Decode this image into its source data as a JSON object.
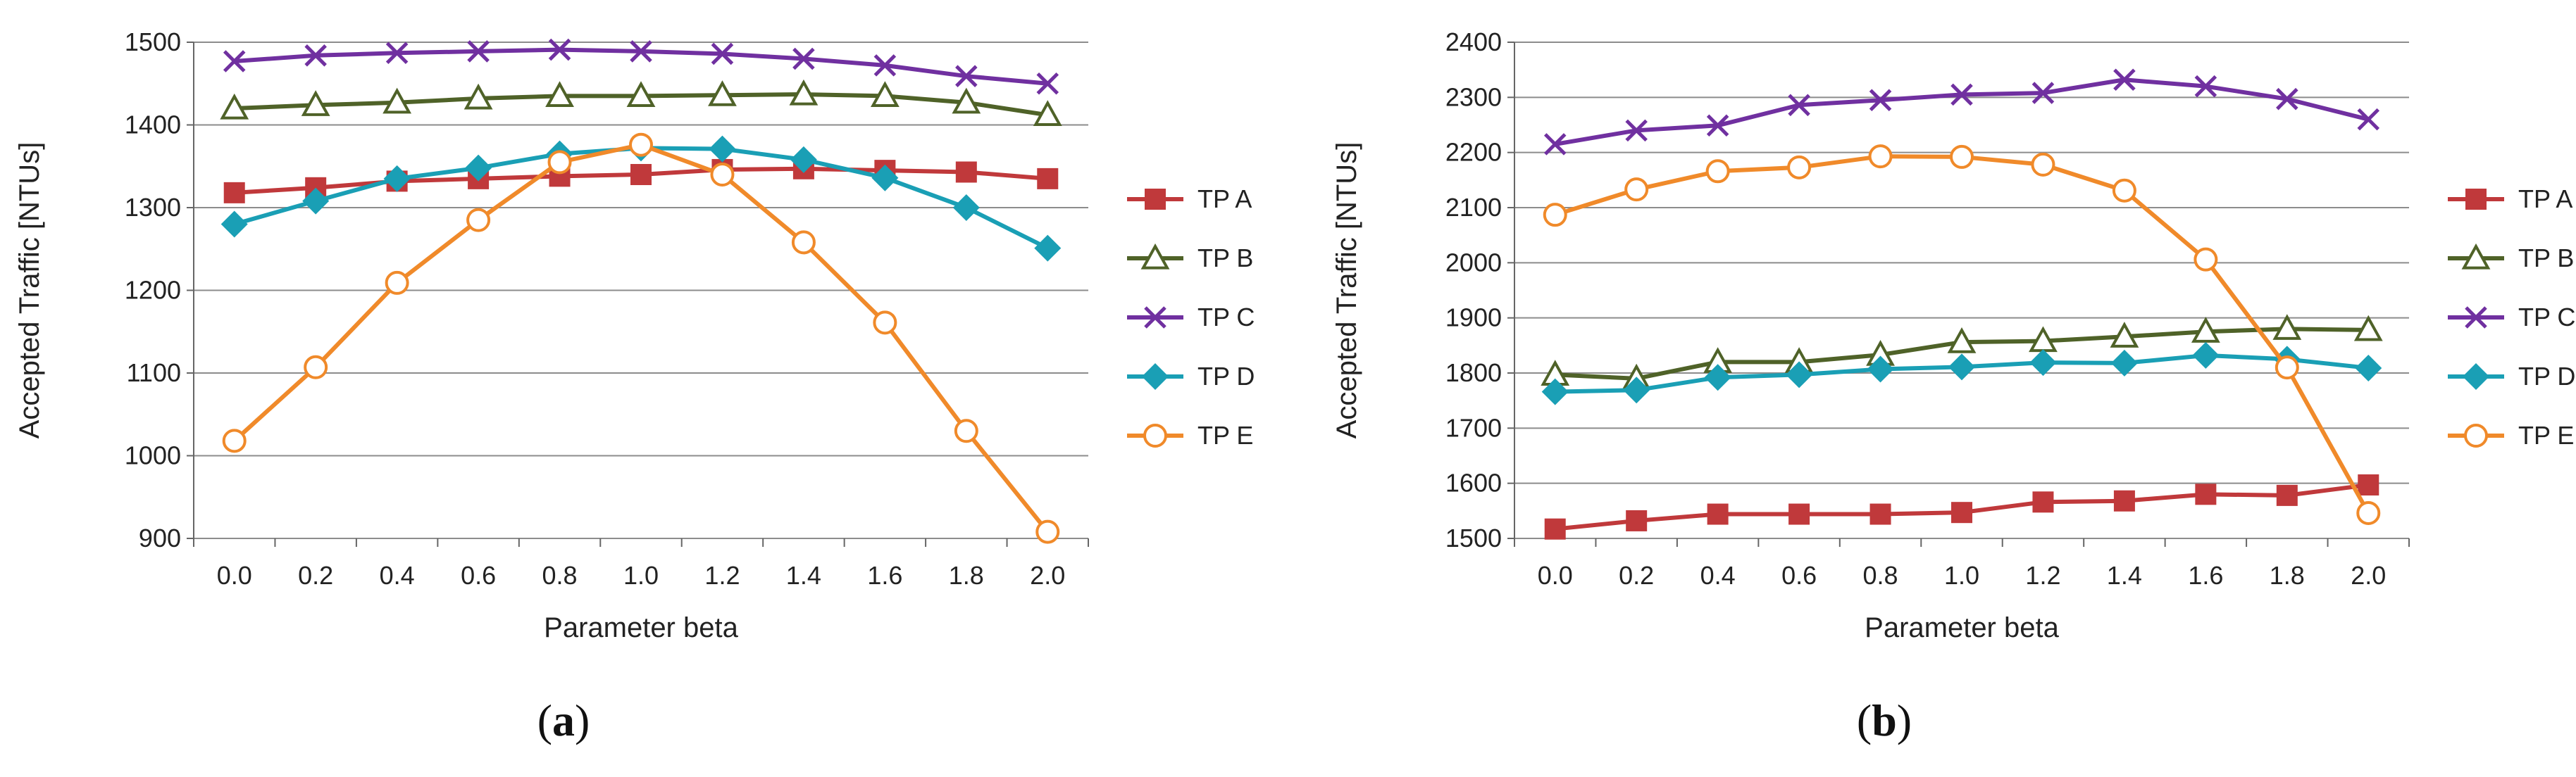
{
  "colors": {
    "TP A": "#c0393b",
    "TP B": "#4f6228",
    "TP C": "#7030a0",
    "TP D": "#1a9fb5",
    "TP E": "#f08a2a",
    "grid": "#8c8c8c",
    "axis": "#666666"
  },
  "chart_data": [
    {
      "type": "line",
      "panel": "a",
      "caption_open": "(",
      "caption_letter": "a",
      "caption_close": ")",
      "xlabel": "Parameter beta",
      "ylabel": "Accepted Traffic [NTUs]",
      "categories": [
        "0.0",
        "0.2",
        "0.4",
        "0.6",
        "0.8",
        "1.0",
        "1.2",
        "1.4",
        "1.6",
        "1.8",
        "2.0"
      ],
      "ylim": [
        900,
        1500
      ],
      "yticks": [
        900,
        1000,
        1100,
        1200,
        1300,
        1400,
        1500
      ],
      "grid": true,
      "legend_position": "right",
      "series": [
        {
          "name": "TP A",
          "marker": "square",
          "values": [
            1318,
            1324,
            1332,
            1335,
            1338,
            1340,
            1346,
            1347,
            1345,
            1343,
            1335
          ]
        },
        {
          "name": "TP B",
          "marker": "triangle-open",
          "values": [
            1420,
            1424,
            1427,
            1432,
            1435,
            1435,
            1436,
            1437,
            1435,
            1427,
            1412
          ]
        },
        {
          "name": "TP C",
          "marker": "x",
          "values": [
            1477,
            1484,
            1487,
            1489,
            1491,
            1489,
            1486,
            1480,
            1472,
            1459,
            1450
          ]
        },
        {
          "name": "TP D",
          "marker": "diamond",
          "values": [
            1280,
            1308,
            1335,
            1348,
            1365,
            1372,
            1371,
            1358,
            1336,
            1300,
            1251
          ]
        },
        {
          "name": "TP E",
          "marker": "circle-open",
          "values": [
            1018,
            1107,
            1209,
            1285,
            1355,
            1376,
            1340,
            1258,
            1161,
            1030,
            908
          ]
        }
      ]
    },
    {
      "type": "line",
      "panel": "b",
      "caption_open": "(",
      "caption_letter": "b",
      "caption_close": ")",
      "xlabel": "Parameter beta",
      "ylabel": "Accepted Traffic [NTUs]",
      "categories": [
        "0.0",
        "0.2",
        "0.4",
        "0.6",
        "0.8",
        "1.0",
        "1.2",
        "1.4",
        "1.6",
        "1.8",
        "2.0"
      ],
      "ylim": [
        1500,
        2400
      ],
      "yticks": [
        1500,
        1600,
        1700,
        1800,
        1900,
        2000,
        2100,
        2200,
        2300,
        2400
      ],
      "grid": true,
      "legend_position": "right",
      "series": [
        {
          "name": "TP A",
          "marker": "square",
          "values": [
            1517,
            1532,
            1544,
            1544,
            1544,
            1547,
            1566,
            1568,
            1580,
            1578,
            1597
          ]
        },
        {
          "name": "TP B",
          "marker": "triangle-open",
          "values": [
            1797,
            1790,
            1820,
            1820,
            1833,
            1856,
            1858,
            1866,
            1875,
            1880,
            1878
          ]
        },
        {
          "name": "TP C",
          "marker": "x",
          "values": [
            2215,
            2240,
            2249,
            2286,
            2295,
            2305,
            2308,
            2332,
            2320,
            2297,
            2260
          ]
        },
        {
          "name": "TP D",
          "marker": "diamond",
          "values": [
            1766,
            1769,
            1792,
            1797,
            1807,
            1811,
            1819,
            1818,
            1832,
            1825,
            1809
          ]
        },
        {
          "name": "TP E",
          "marker": "circle-open",
          "values": [
            2087,
            2133,
            2166,
            2173,
            2193,
            2192,
            2178,
            2131,
            2006,
            1810,
            1546
          ]
        }
      ]
    }
  ]
}
